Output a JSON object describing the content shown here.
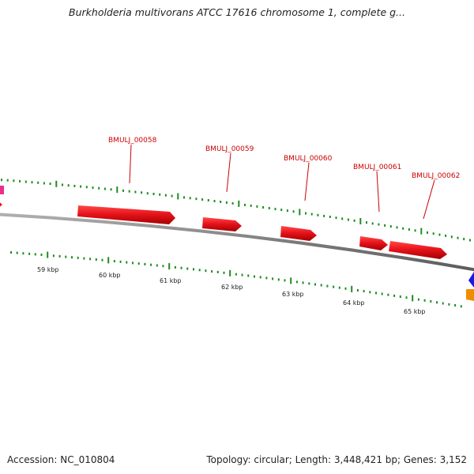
{
  "title": "Burkholderia multivorans ATCC 17616 chromosome 1, complete g...",
  "footer": {
    "accession": "Accession: NC_010804",
    "topology": "Topology: circular; Length: 3,448,421 bp; Genes: 3,152"
  },
  "genes": [
    {
      "id": "BMULJ_00058",
      "start_kbp": 58.8,
      "end_kbp": 60.5,
      "strand": "+"
    },
    {
      "id": "BMULJ_00059",
      "start_kbp": 61.7,
      "end_kbp": 62.3,
      "strand": "+"
    },
    {
      "id": "BMULJ_00060",
      "start_kbp": 62.6,
      "end_kbp": 63.2,
      "strand": "+"
    },
    {
      "id": "BMULJ_00061",
      "start_kbp": 64.0,
      "end_kbp": 64.5,
      "strand": "+"
    },
    {
      "id": "BMULJ_00062",
      "start_kbp": 64.5,
      "end_kbp": 65.4,
      "strand": "+"
    }
  ],
  "scale_labels": [
    "59 kbp",
    "60 kbp",
    "61 kbp",
    "62 kbp",
    "63 kbp",
    "64 kbp",
    "65 kbp"
  ],
  "colors": {
    "gene": "#e8141c",
    "gene_dark": "#a50000",
    "label": "#cc0000",
    "backbone": "#8a8a8a",
    "ticks": "#1e8c1e",
    "magenta_feature": "#e8308c",
    "blue_feature": "#1a1ae6",
    "orange_feature": "#f08c00"
  }
}
